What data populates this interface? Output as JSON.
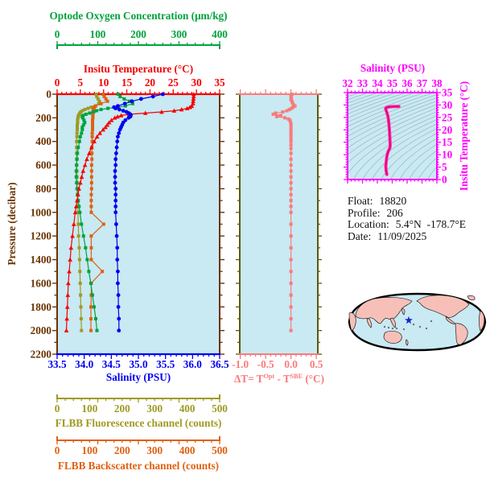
{
  "colors": {
    "oxygen": "#00a23c",
    "temperature": "#f40000",
    "pressure_axis": "#6b3300",
    "salinity": "#0000f2",
    "fluorescence": "#9f9a22",
    "backscatter": "#e0600f",
    "delta_t": "#fa7a7a",
    "mid_side_spine": "#5b5b07",
    "ts_axis": "#ff00ff",
    "ts_curve_outer": "#ff35ac",
    "ts_curve_inner": "#e50078",
    "ts_contour": "#9db4be",
    "plot_bg": "#c9e9f3",
    "map_land": "#f6c0b8",
    "map_ocean": "#c9e9f3",
    "map_outline": "#000000",
    "star": "#1326cc"
  },
  "axes": {
    "oxygen": {
      "title": "Optode Oxygen Concentration (μm/kg)",
      "tick_labels": [
        "0",
        "100",
        "200",
        "300",
        "400"
      ],
      "range": [
        0,
        400
      ]
    },
    "temperature": {
      "title": "Insitu Temperature (°C)",
      "tick_labels": [
        "0",
        "5",
        "10",
        "15",
        "20",
        "25",
        "30",
        "35"
      ],
      "range": [
        0,
        35
      ]
    },
    "pressure": {
      "title": "Pressure (decibar)",
      "tick_labels": [
        "0",
        "200",
        "400",
        "600",
        "800",
        "1000",
        "1200",
        "1400",
        "1600",
        "1800",
        "2000",
        "2200"
      ],
      "range": [
        0,
        2200
      ]
    },
    "salinity": {
      "title": "Salinity (PSU)",
      "tick_labels": [
        "33.5",
        "34.0",
        "34.5",
        "35.0",
        "35.5",
        "36.0",
        "36.5"
      ],
      "range": [
        33.5,
        36.5
      ]
    },
    "fluorescence": {
      "title": "FLBB Fluorescence channel (counts)",
      "tick_labels": [
        "0",
        "100",
        "200",
        "300",
        "400",
        "500"
      ],
      "range": [
        0,
        500
      ]
    },
    "backscatter": {
      "title": "FLBB Backscatter channel (counts)",
      "tick_labels": [
        "0",
        "100",
        "200",
        "300",
        "400",
        "500"
      ],
      "range": [
        0,
        500
      ]
    },
    "delta_t": {
      "title_pre": "ΔT= T",
      "title_sup1": "Opt",
      "title_mid": " - T",
      "title_sup2": "SBE",
      "title_post": " (°C)",
      "tick_labels": [
        "-1.0",
        "-0.5",
        "0.0",
        "0.5"
      ],
      "tick_values": [
        -1.0,
        -0.5,
        0.0,
        0.5
      ],
      "range": [
        -1.01,
        0.53
      ]
    },
    "ts_salinity": {
      "title": "Salinity (PSU)",
      "tick_labels": [
        "32",
        "33",
        "34",
        "35",
        "36",
        "37",
        "38"
      ],
      "range": [
        32,
        38
      ]
    },
    "ts_temperature": {
      "title": "Insitu Temperature (°C)",
      "tick_labels": [
        "0",
        "5",
        "10",
        "15",
        "20",
        "25",
        "30",
        "35"
      ],
      "range": [
        0,
        35
      ]
    }
  },
  "info": {
    "float_label": "Float:",
    "float_value": "18820",
    "profile_label": "Profile:",
    "profile_value": "206",
    "location_label": "Location:",
    "location_value": "5.4°N  -178.7°E",
    "date_label": "Date:",
    "date_value": "11/09/2025"
  },
  "map": {
    "star_x": 76,
    "star_y": 37
  },
  "chart_data": {
    "type": "line",
    "description": "Argo float vertical profiles versus pressure (decibar), plus optode-minus-SBE temperature difference and a T-S diagram with isopycnal contours",
    "pressure_dbar": [
      0,
      20,
      40,
      60,
      80,
      100,
      110,
      120,
      130,
      140,
      150,
      160,
      170,
      180,
      190,
      200,
      220,
      240,
      260,
      280,
      300,
      330,
      360,
      400,
      450,
      500,
      550,
      600,
      650,
      700,
      750,
      800,
      850,
      900,
      950,
      1000,
      1100,
      1200,
      1300,
      1400,
      1500,
      1600,
      1700,
      1800,
      1900,
      2000
    ],
    "series": [
      {
        "name": "insitu-temperature",
        "axis": "temperature",
        "marker": "triangle",
        "color": "#f40000",
        "values": [
          29.4,
          29.4,
          29.35,
          29.3,
          29.25,
          29.0,
          28.6,
          28.0,
          26.8,
          25.2,
          22.5,
          19.0,
          15.5,
          13.8,
          13.0,
          12.4,
          11.7,
          11.2,
          10.8,
          10.4,
          9.9,
          9.2,
          8.6,
          8.0,
          7.4,
          6.9,
          6.4,
          6.0,
          5.6,
          5.3,
          5.0,
          4.7,
          4.5,
          4.3,
          4.1,
          3.9,
          3.6,
          3.3,
          3.0,
          2.8,
          2.6,
          2.4,
          2.3,
          2.2,
          2.1,
          2.0
        ]
      },
      {
        "name": "salinity",
        "axis": "salinity",
        "marker": "circle",
        "color": "#0000f2",
        "values": [
          35.45,
          35.27,
          35.05,
          34.88,
          34.75,
          34.62,
          34.55,
          34.58,
          34.65,
          34.72,
          34.78,
          34.82,
          34.85,
          34.86,
          34.85,
          34.82,
          34.76,
          34.72,
          34.7,
          34.68,
          34.66,
          34.64,
          34.62,
          34.61,
          34.6,
          34.59,
          34.58,
          34.58,
          34.57,
          34.57,
          34.57,
          34.58,
          34.58,
          34.58,
          34.58,
          34.58,
          34.59,
          34.6,
          34.61,
          34.61,
          34.62,
          34.62,
          34.63,
          34.63,
          34.64,
          34.64
        ]
      },
      {
        "name": "optode-oxygen",
        "axis": "oxygen",
        "marker": "square",
        "color": "#00a23c",
        "values": [
          150,
          155,
          165,
          178,
          186,
          168,
          148,
          125,
          108,
          97,
          90,
          80,
          71,
          64,
          62,
          63,
          66,
          68,
          65,
          62,
          62,
          60,
          57,
          55,
          52,
          50,
          49,
          48,
          47,
          47,
          48,
          49,
          50,
          52,
          54,
          56,
          60,
          65,
          70,
          74,
          78,
          83,
          87,
          91,
          95,
          98
        ]
      },
      {
        "name": "flbb-fluorescence",
        "axis": "fluorescence",
        "marker": "square",
        "color": "#9f9a22",
        "values": [
          120,
          122,
          126,
          130,
          128,
          118,
          105,
          95,
          85,
          78,
          73,
          70,
          68,
          66,
          65,
          64,
          63,
          63,
          62,
          62,
          62,
          61,
          61,
          60,
          60,
          60,
          60,
          60,
          61,
          61,
          62,
          62,
          63,
          63,
          64,
          64,
          65,
          66,
          68,
          69,
          70,
          71,
          72,
          73,
          74,
          75
        ]
      },
      {
        "name": "flbb-backscatter",
        "axis": "backscatter",
        "marker": "square",
        "color": "#e0600f",
        "values": [
          142,
          145,
          150,
          155,
          135,
          118,
          114,
          112,
          111,
          111,
          110,
          110,
          110,
          110,
          110,
          110,
          109,
          109,
          109,
          109,
          109,
          108,
          108,
          108,
          107,
          107,
          107,
          106,
          106,
          106,
          106,
          106,
          105,
          105,
          105,
          105,
          143,
          105,
          105,
          105,
          139,
          105,
          105,
          104,
          104,
          104
        ]
      }
    ],
    "delta_t_profile": {
      "name": "optode-minus-sbe-temperature",
      "marker": "square",
      "color": "#fa7a7a",
      "pressure_dbar": [
        0,
        15,
        30,
        45,
        60,
        75,
        90,
        100,
        110,
        120,
        130,
        140,
        150,
        160,
        170,
        180,
        190,
        200,
        210,
        220,
        235,
        250,
        270,
        290,
        310,
        330,
        350,
        375,
        400,
        430,
        460,
        500,
        550,
        600,
        650,
        700,
        750,
        800,
        850,
        900,
        950,
        1000,
        1100,
        1200,
        1300,
        1400,
        1500,
        1600,
        1700,
        1800,
        1900,
        2000
      ],
      "values": [
        0.02,
        0.0,
        0.01,
        0.0,
        0.02,
        0.03,
        0.05,
        0.08,
        0.04,
        0.01,
        -0.03,
        -0.08,
        -0.16,
        -0.3,
        -0.35,
        -0.2,
        -0.28,
        -0.12,
        -0.05,
        -0.02,
        -0.01,
        0.0,
        0.0,
        0.0,
        0.0,
        0.0,
        0.0,
        0.0,
        0.0,
        0.0,
        0.0,
        0.0,
        0.0,
        0.0,
        0.0,
        0.0,
        0.0,
        0.0,
        0.0,
        0.0,
        0.0,
        0.0,
        0.0,
        0.0,
        0.0,
        0.0,
        0.0,
        0.0,
        0.0,
        0.0,
        0.0,
        0.0
      ]
    },
    "ts_curve": {
      "note": "salinity series plotted against insitu-temperature series on the T-S panel"
    }
  }
}
